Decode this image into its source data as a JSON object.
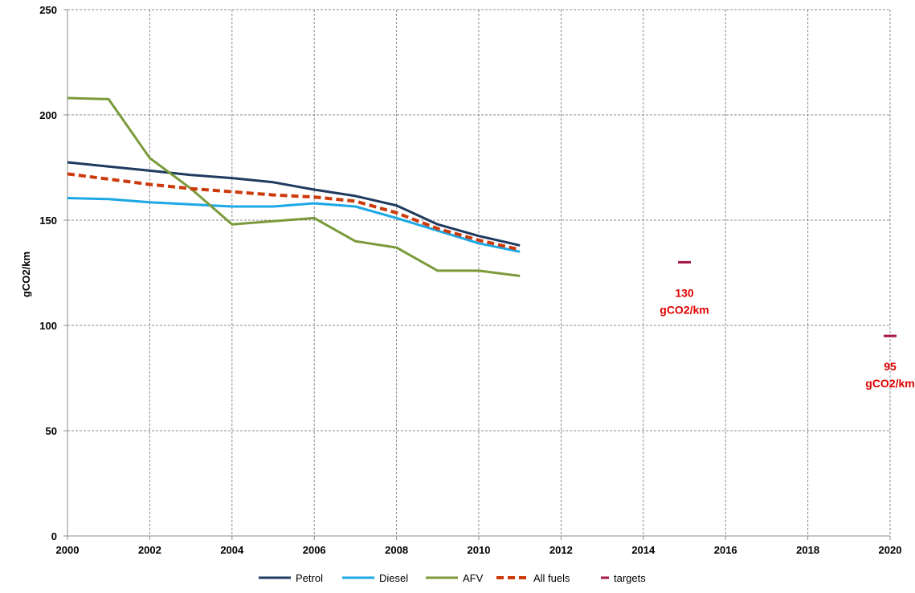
{
  "chart_data": {
    "type": "line",
    "ylabel": "gCO2/km",
    "xlabel": "",
    "title": "",
    "xlim": [
      2000,
      2020
    ],
    "ylim": [
      0,
      250
    ],
    "x_ticks": [
      "2000",
      "2002",
      "2004",
      "2006",
      "2008",
      "2010",
      "2012",
      "2014",
      "2016",
      "2018",
      "2020"
    ],
    "y_ticks": [
      "0",
      "50",
      "100",
      "150",
      "200",
      "250"
    ],
    "grid": true,
    "legend_position": "bottom",
    "series": [
      {
        "name": "Petrol",
        "color": "#1f3a5f",
        "style": "solid",
        "x": [
          2000,
          2001,
          2002,
          2003,
          2004,
          2005,
          2006,
          2007,
          2008,
          2009,
          2010,
          2011
        ],
        "y": [
          177.5,
          175.5,
          173.5,
          171.5,
          170,
          168,
          164.5,
          161.5,
          157,
          148,
          142.5,
          138
        ]
      },
      {
        "name": "Diesel",
        "color": "#1ca8e4",
        "style": "solid",
        "x": [
          2000,
          2001,
          2002,
          2003,
          2004,
          2005,
          2006,
          2007,
          2008,
          2009,
          2010,
          2011
        ],
        "y": [
          160.5,
          160,
          158.5,
          157.5,
          156.5,
          156.5,
          158,
          156.5,
          151,
          145,
          139,
          135
        ]
      },
      {
        "name": "AFV",
        "color": "#7a9a3a",
        "style": "solid",
        "x": [
          2000,
          2001,
          2002,
          2003,
          2004,
          2005,
          2006,
          2007,
          2008,
          2009,
          2010,
          2011
        ],
        "y": [
          208,
          207.5,
          179.5,
          165,
          148,
          149.5,
          151,
          140,
          137,
          126,
          126,
          123.5
        ]
      },
      {
        "name": "All fuels",
        "color": "#cc3a0c",
        "style": "dashed",
        "x": [
          2000,
          2001,
          2002,
          2003,
          2004,
          2005,
          2006,
          2007,
          2008,
          2009,
          2010,
          2011
        ],
        "y": [
          172,
          169.5,
          167,
          165,
          163.5,
          162,
          161,
          159,
          153.5,
          146,
          140.5,
          136
        ]
      },
      {
        "name": "targets",
        "color": "#a3174a",
        "style": "marker",
        "x": [
          2015,
          2020
        ],
        "y": [
          130,
          95
        ]
      }
    ],
    "annotations": [
      {
        "x": 2015,
        "y": 130,
        "lines": [
          "130",
          "gCO2/km"
        ],
        "color": "#e00000"
      },
      {
        "x": 2020,
        "y": 95,
        "lines": [
          "95",
          "gCO2/km"
        ],
        "color": "#e00000"
      }
    ]
  }
}
